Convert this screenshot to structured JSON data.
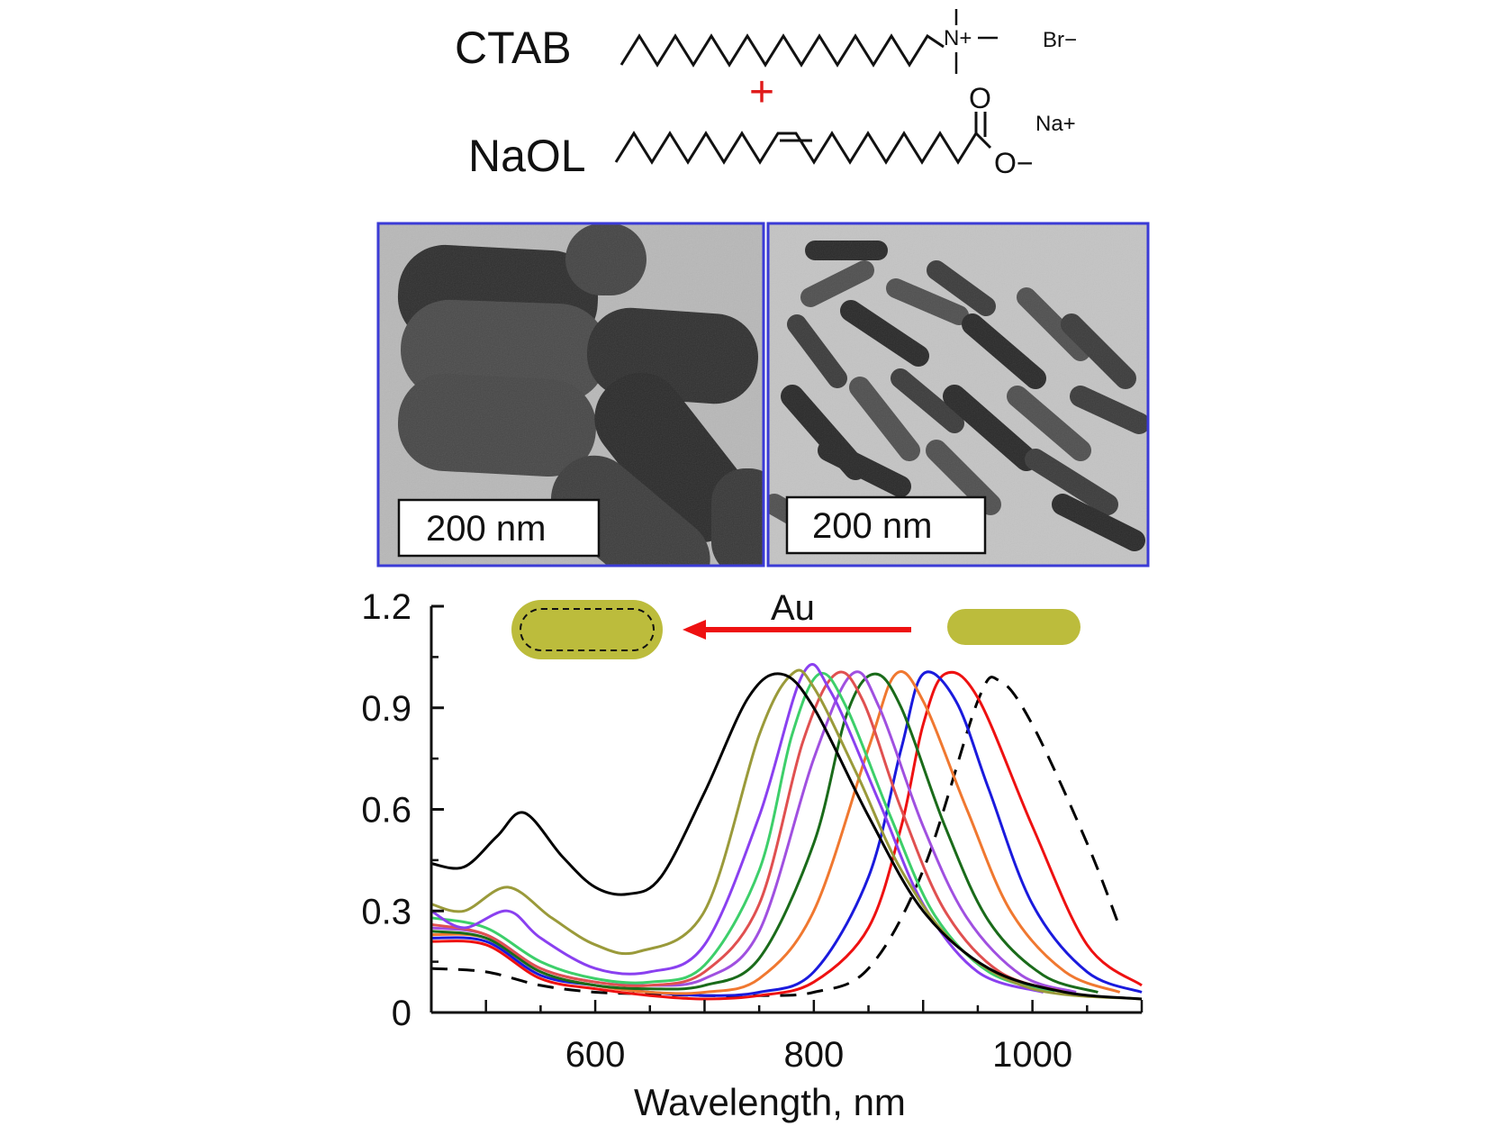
{
  "scheme": {
    "ctab_label": "CTAB",
    "naol_label": "NaOL",
    "plus": "+",
    "n_plus": "N+",
    "br_minus": "Br−",
    "o_top": "O",
    "o_minus": "O−",
    "na_plus": "Na+"
  },
  "tem": {
    "left_scale": "200 nm",
    "right_scale": "200 nm",
    "border_color": "#3b3bd6"
  },
  "inset": {
    "arrow_label": "Au",
    "rod_color": "#bcbc3c",
    "arrow_color": "#ee1111"
  },
  "chart_data": {
    "type": "line",
    "title": "",
    "xlabel": "Wavelength, nm",
    "ylabel": "",
    "xlim": [
      450,
      1100
    ],
    "ylim": [
      0,
      1.2
    ],
    "xticks": [
      600,
      800,
      1000
    ],
    "xtick_labels": [
      "600",
      "800",
      "1000"
    ],
    "yticks": [
      0,
      0.3,
      0.6,
      0.9,
      1.2
    ],
    "ytick_labels": [
      "0",
      "0.3",
      "0.6",
      "0.9",
      "1.2"
    ],
    "grid": false,
    "legend": "none",
    "series": [
      {
        "color": "#000000",
        "style": "dashed",
        "x": [
          450,
          500,
          550,
          600,
          650,
          700,
          750,
          800,
          850,
          900,
          950,
          970,
          1000,
          1050,
          1080
        ],
        "y": [
          0.13,
          0.12,
          0.08,
          0.06,
          0.055,
          0.05,
          0.05,
          0.06,
          0.13,
          0.42,
          0.92,
          0.98,
          0.85,
          0.5,
          0.25
        ]
      },
      {
        "color": "#ee1111",
        "style": "solid",
        "x": [
          450,
          500,
          550,
          600,
          650,
          700,
          750,
          800,
          850,
          880,
          900,
          920,
          950,
          1000,
          1050,
          1100
        ],
        "y": [
          0.21,
          0.2,
          0.1,
          0.07,
          0.05,
          0.04,
          0.05,
          0.09,
          0.25,
          0.55,
          0.85,
          1.0,
          0.93,
          0.55,
          0.2,
          0.08
        ]
      },
      {
        "color": "#1a1add",
        "style": "solid",
        "x": [
          450,
          500,
          550,
          600,
          650,
          700,
          750,
          800,
          850,
          880,
          900,
          930,
          960,
          1000,
          1050,
          1100
        ],
        "y": [
          0.22,
          0.21,
          0.11,
          0.08,
          0.06,
          0.05,
          0.06,
          0.12,
          0.4,
          0.78,
          1.0,
          0.92,
          0.66,
          0.32,
          0.12,
          0.06
        ]
      },
      {
        "color": "#f07830",
        "style": "solid",
        "x": [
          450,
          500,
          550,
          600,
          650,
          700,
          750,
          800,
          850,
          875,
          900,
          940,
          980,
          1030,
          1080
        ],
        "y": [
          0.23,
          0.22,
          0.12,
          0.08,
          0.06,
          0.06,
          0.1,
          0.3,
          0.78,
          1.0,
          0.92,
          0.6,
          0.3,
          0.12,
          0.06
        ]
      },
      {
        "color": "#1a6b1a",
        "style": "solid",
        "x": [
          450,
          500,
          550,
          600,
          650,
          700,
          750,
          800,
          830,
          855,
          880,
          920,
          960,
          1010,
          1060
        ],
        "y": [
          0.24,
          0.22,
          0.12,
          0.08,
          0.07,
          0.08,
          0.16,
          0.5,
          0.88,
          1.0,
          0.9,
          0.55,
          0.27,
          0.11,
          0.06
        ]
      },
      {
        "color": "#a050e0",
        "style": "solid",
        "x": [
          450,
          500,
          550,
          600,
          650,
          700,
          750,
          800,
          835,
          860,
          900,
          940,
          990,
          1040
        ],
        "y": [
          0.25,
          0.23,
          0.13,
          0.09,
          0.08,
          0.1,
          0.24,
          0.75,
          1.0,
          0.9,
          0.55,
          0.28,
          0.11,
          0.06
        ]
      },
      {
        "color": "#e05050",
        "style": "solid",
        "x": [
          450,
          500,
          550,
          600,
          650,
          700,
          750,
          790,
          820,
          845,
          880,
          920,
          970,
          1030
        ],
        "y": [
          0.26,
          0.23,
          0.13,
          0.09,
          0.08,
          0.12,
          0.32,
          0.8,
          1.0,
          0.92,
          0.6,
          0.3,
          0.12,
          0.06
        ]
      },
      {
        "color": "#3dcf6a",
        "style": "solid",
        "x": [
          450,
          500,
          550,
          600,
          650,
          700,
          750,
          780,
          805,
          830,
          870,
          910,
          960,
          1020
        ],
        "y": [
          0.28,
          0.25,
          0.15,
          0.1,
          0.09,
          0.14,
          0.42,
          0.82,
          1.0,
          0.9,
          0.58,
          0.29,
          0.12,
          0.06
        ]
      },
      {
        "color": "#8a40f0",
        "style": "solid",
        "x": [
          450,
          480,
          520,
          550,
          600,
          650,
          700,
          750,
          790,
          815,
          860,
          900,
          950,
          1010
        ],
        "y": [
          0.3,
          0.25,
          0.3,
          0.22,
          0.13,
          0.12,
          0.2,
          0.58,
          1.0,
          0.95,
          0.62,
          0.32,
          0.12,
          0.06
        ]
      },
      {
        "color": "#9a9a3a",
        "style": "solid",
        "x": [
          450,
          480,
          520,
          560,
          600,
          640,
          700,
          750,
          780,
          800,
          840,
          880,
          930,
          1000,
          1100
        ],
        "y": [
          0.32,
          0.3,
          0.37,
          0.28,
          0.2,
          0.18,
          0.3,
          0.82,
          1.0,
          0.96,
          0.7,
          0.42,
          0.2,
          0.07,
          0.04
        ]
      },
      {
        "color": "#000000",
        "style": "solid",
        "x": [
          450,
          480,
          510,
          535,
          570,
          600,
          630,
          660,
          700,
          740,
          770,
          800,
          850,
          900,
          960,
          1030,
          1100
        ],
        "y": [
          0.44,
          0.43,
          0.52,
          0.59,
          0.46,
          0.37,
          0.35,
          0.4,
          0.65,
          0.93,
          1.0,
          0.9,
          0.58,
          0.3,
          0.13,
          0.06,
          0.04
        ]
      }
    ]
  }
}
